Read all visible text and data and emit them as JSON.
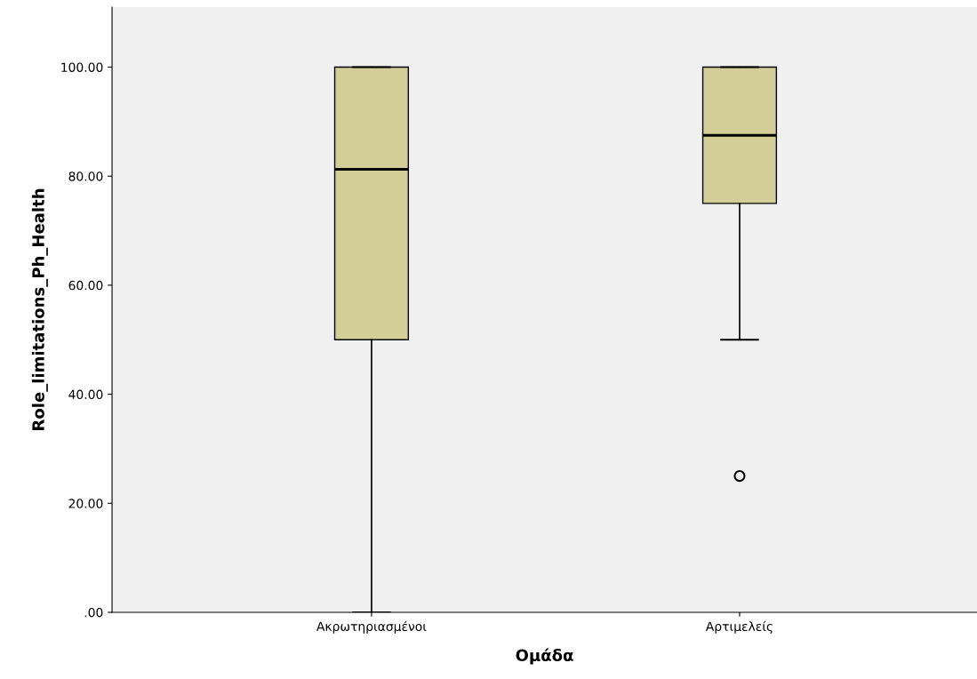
{
  "chart_data": {
    "type": "box",
    "xlabel": "Ομάδα",
    "ylabel": "Role_limitations_Ph_Health",
    "categories": [
      "Ακρωτηριασμένοι",
      "Αρτιμελείς"
    ],
    "boxes": [
      {
        "low": 0,
        "q1": 50,
        "median": 81.25,
        "q3": 100,
        "high": 100
      },
      {
        "low": 50,
        "q1": 75,
        "median": 87.5,
        "q3": 100,
        "high": 100,
        "outliers": [
          25
        ]
      }
    ],
    "color": "#d3ce97",
    "ylim": [
      0,
      111
    ],
    "yticks": [
      {
        "value": 0,
        "label": ".00"
      },
      {
        "value": 20,
        "label": "20.00"
      },
      {
        "value": 40,
        "label": "40.00"
      },
      {
        "value": 60,
        "label": "60.00"
      },
      {
        "value": 80,
        "label": "80.00"
      },
      {
        "value": 100,
        "label": "100.00"
      }
    ],
    "grid": false,
    "marker": "circle"
  }
}
